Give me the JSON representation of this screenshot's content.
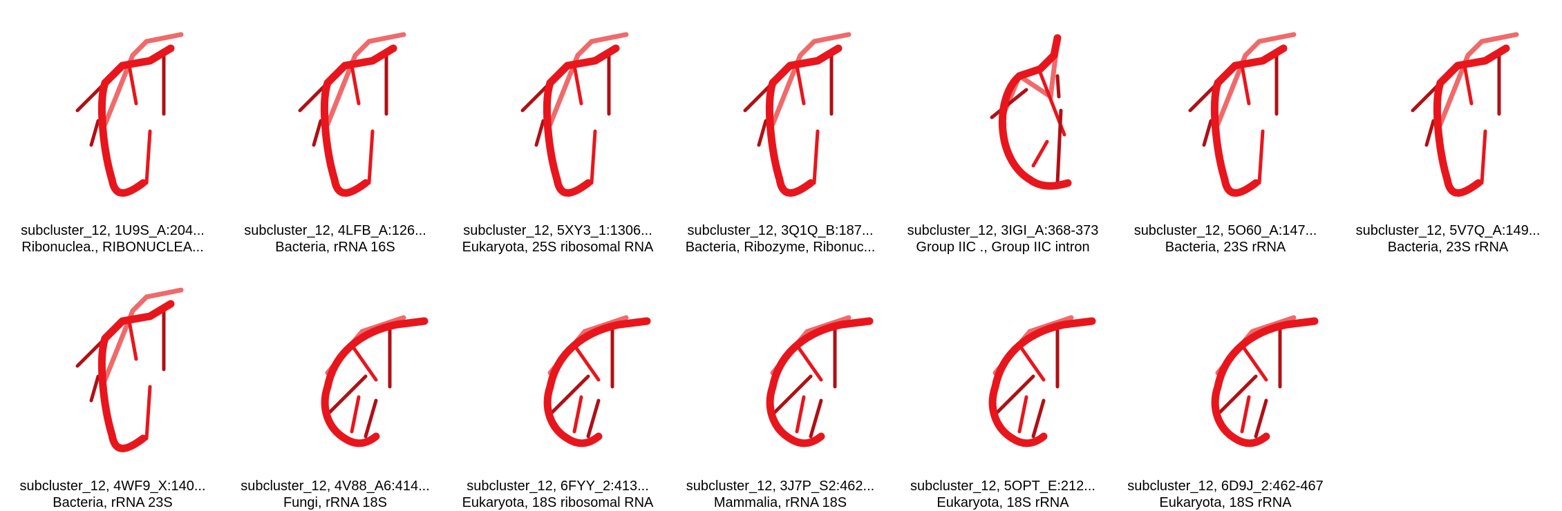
{
  "colors": {
    "strand": "#e8161c",
    "strand_light": "#f06a6a",
    "strand_dark": "#b01015"
  },
  "cells": [
    {
      "line1": "subcluster_12, 1U9S_A:204...",
      "line2": "Ribonuclea., RIBONUCLEA...",
      "shape": "open"
    },
    {
      "line1": "subcluster_12, 4LFB_A:126...",
      "line2": "Bacteria, rRNA 16S",
      "shape": "open"
    },
    {
      "line1": "subcluster_12, 5XY3_1:1306...",
      "line2": "Eukaryota, 25S ribosomal RNA",
      "shape": "open"
    },
    {
      "line1": "subcluster_12, 3Q1Q_B:187...",
      "line2": "Bacteria, Ribozyme, Ribonuc...",
      "shape": "open"
    },
    {
      "line1": "subcluster_12, 3IGI_A:368-373",
      "line2": "Group IIC ., Group IIC intron",
      "shape": "loop"
    },
    {
      "line1": "subcluster_12, 5O60_A:147...",
      "line2": "Bacteria, 23S rRNA",
      "shape": "open"
    },
    {
      "line1": "subcluster_12, 5V7Q_A:149...",
      "line2": "Bacteria, 23S rRNA",
      "shape": "open"
    },
    {
      "line1": "subcluster_12, 4WF9_X:140...",
      "line2": "Bacteria, rRNA 23S",
      "shape": "open"
    },
    {
      "line1": "subcluster_12, 4V88_A6:414...",
      "line2": "Fungi, rRNA 18S",
      "shape": "arc"
    },
    {
      "line1": "subcluster_12, 6FYY_2:413...",
      "line2": "Eukaryota, 18S ribosomal RNA",
      "shape": "arc"
    },
    {
      "line1": "subcluster_12, 3J7P_S2:462...",
      "line2": "Mammalia, rRNA 18S",
      "shape": "arc"
    },
    {
      "line1": "subcluster_12, 5OPT_E:212...",
      "line2": "Eukaryota, 18S rRNA",
      "shape": "arc"
    },
    {
      "line1": "subcluster_12, 6D9J_2:462-467",
      "line2": "Eukaryota, 18S rRNA",
      "shape": "arc"
    }
  ]
}
